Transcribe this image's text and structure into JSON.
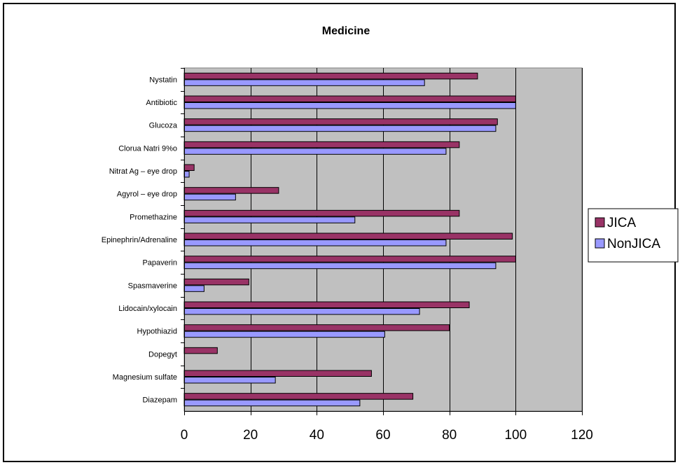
{
  "chart_data": {
    "type": "bar",
    "orientation": "horizontal",
    "title": "Medicine",
    "xlabel": "",
    "ylabel": "",
    "xlim": [
      0,
      120
    ],
    "xticks": [
      0,
      20,
      40,
      60,
      80,
      100,
      120
    ],
    "grid": "vertical major gridlines",
    "legend_position": "right",
    "categories": [
      "Nystatin",
      "Antibiotic",
      "Glucoza",
      "Clorua Natri 9%o",
      "Nitrat Ag – eye drop",
      "Agyrol – eye drop",
      "Promethazine",
      "Epinephrin/Adrenaline",
      "Papaverin",
      "Spasmaverine",
      "Lidocain/xylocain",
      "Hypothiazid",
      "Dopegyt",
      "Magnesium sulfate",
      "Diazepam"
    ],
    "series": [
      {
        "name": "JICA",
        "color": "#993366",
        "values": [
          88.5,
          100,
          94.5,
          83,
          3,
          28.5,
          83,
          99,
          100,
          19.5,
          86,
          80,
          10,
          56.5,
          69
        ]
      },
      {
        "name": "NonJICA",
        "color": "#9999ff",
        "values": [
          72.5,
          100,
          94,
          79,
          1.5,
          15.5,
          51.5,
          79,
          94,
          6,
          71,
          60.5,
          0,
          27.5,
          53
        ]
      }
    ]
  },
  "colors": {
    "plot_bg": "#c0c0c0",
    "gridline": "#000000"
  }
}
